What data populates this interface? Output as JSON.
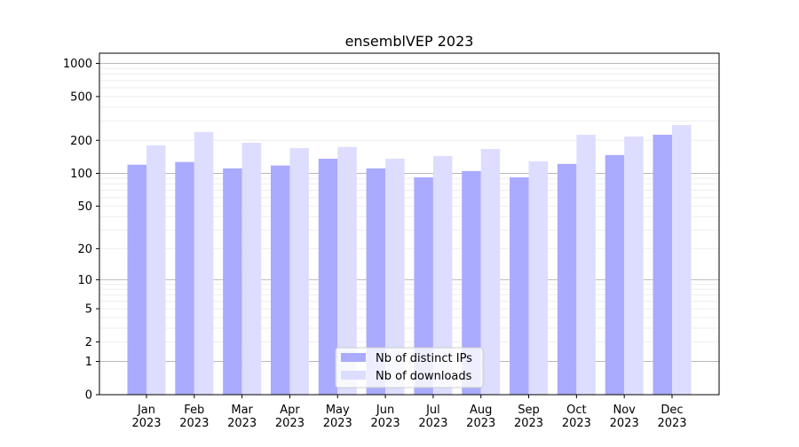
{
  "chart_data": {
    "type": "bar",
    "title": "ensemblVEP 2023",
    "xlabel": "",
    "ylabel": "",
    "yscale": "log(y+1)",
    "ylim": [
      0,
      1300
    ],
    "yticks": [
      0,
      1,
      2,
      5,
      10,
      20,
      50,
      100,
      200,
      500,
      1000
    ],
    "grid": true,
    "legend_position": "lower center",
    "categories": [
      "Jan\n2023",
      "Feb\n2023",
      "Mar\n2023",
      "Apr\n2023",
      "May\n2023",
      "Jun\n2023",
      "Jul\n2023",
      "Aug\n2023",
      "Sep\n2023",
      "Oct\n2023",
      "Nov\n2023",
      "Dec\n2023"
    ],
    "series": [
      {
        "name": "Nb of distinct IPs",
        "color": "#aaaaff",
        "values": [
          120,
          127,
          111,
          118,
          136,
          111,
          92,
          105,
          92,
          122,
          147,
          225
        ]
      },
      {
        "name": "Nb of downloads",
        "color": "#ddddff",
        "values": [
          180,
          238,
          190,
          170,
          174,
          136,
          144,
          167,
          129,
          225,
          217,
          276
        ]
      }
    ]
  }
}
